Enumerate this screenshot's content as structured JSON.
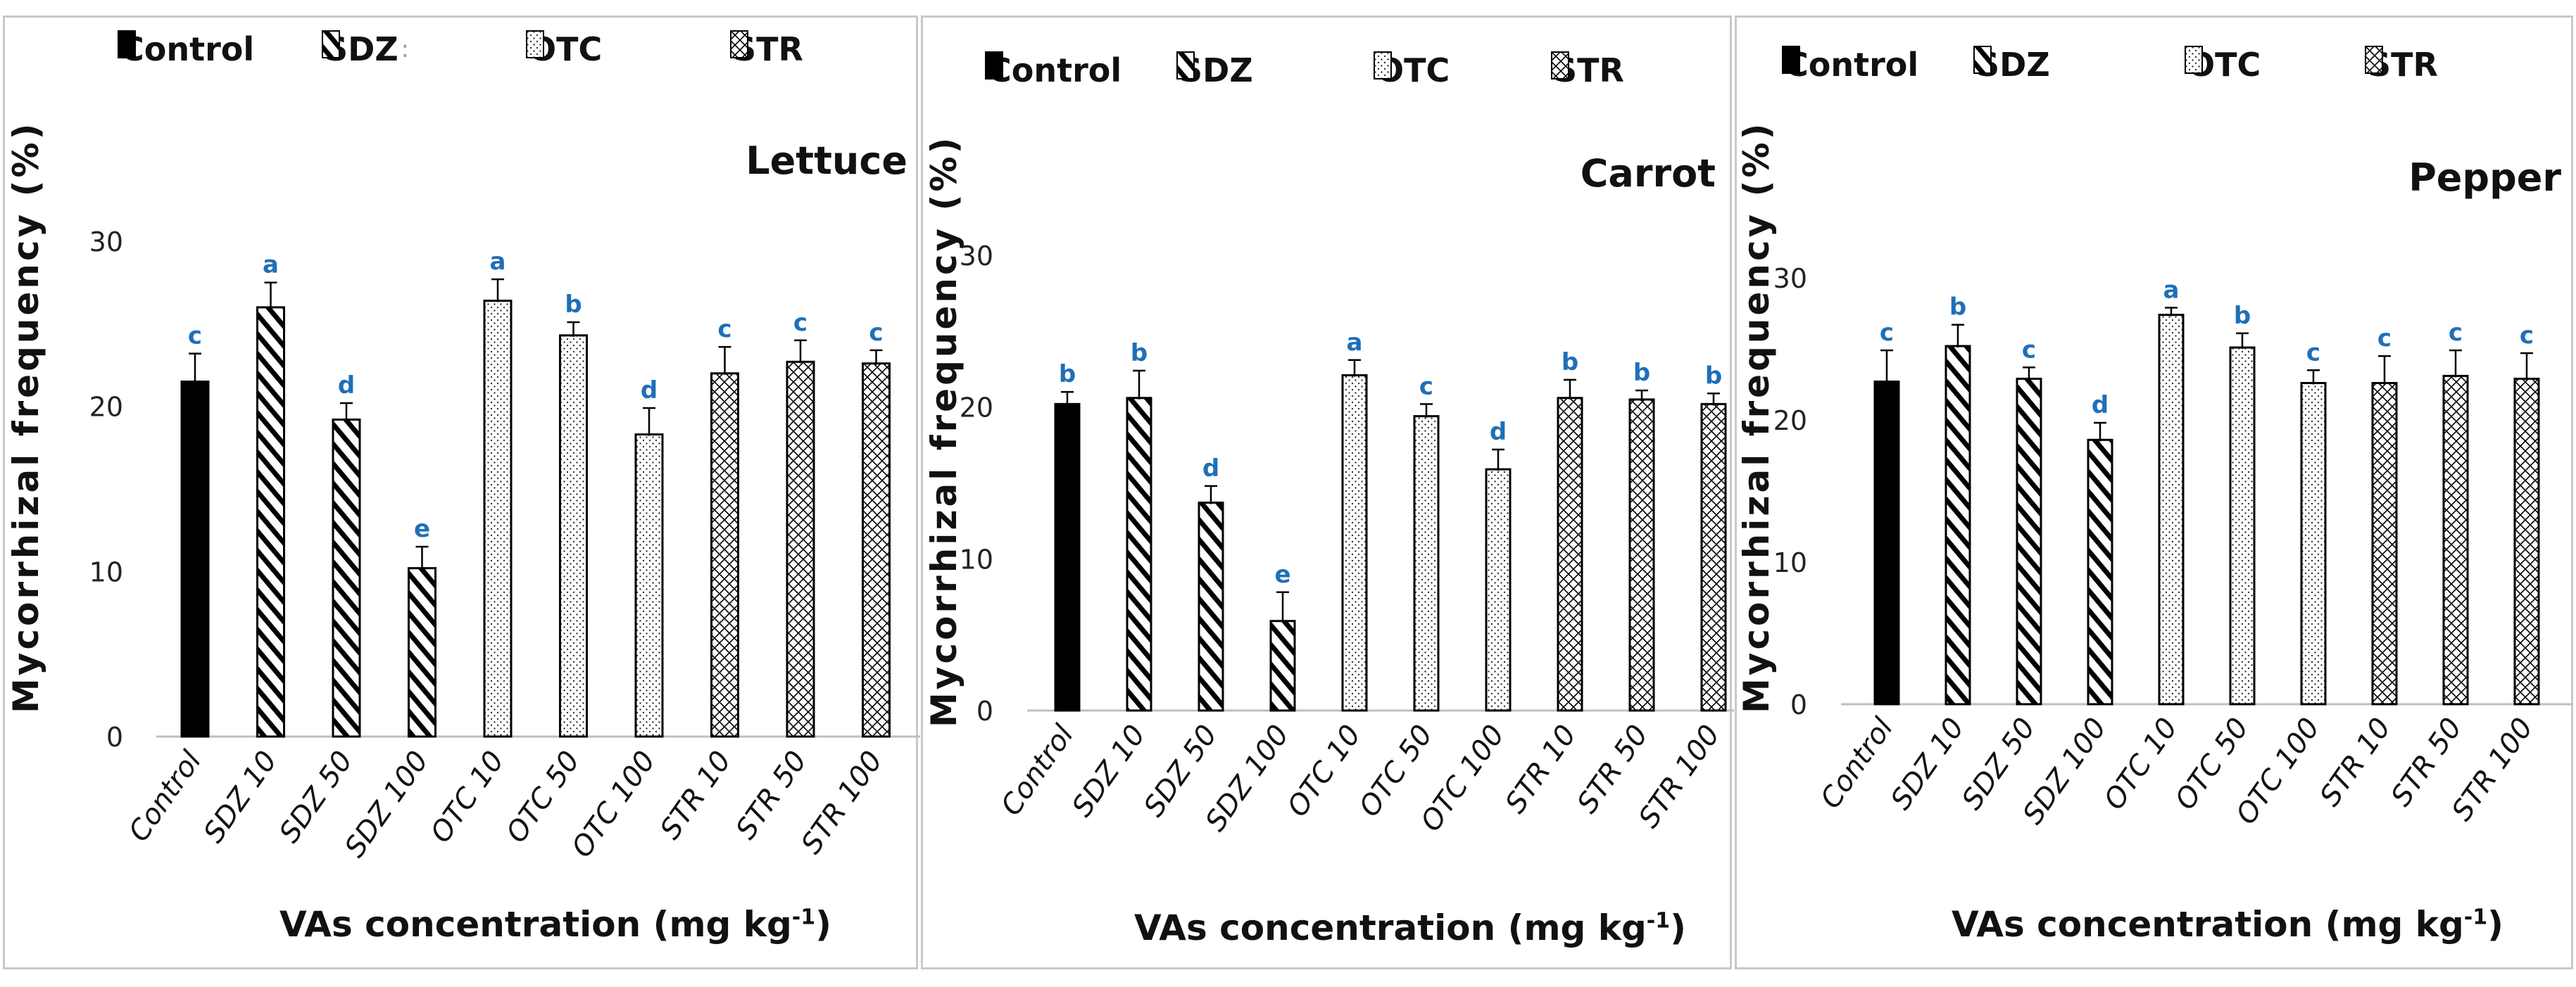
{
  "legend": [
    "Control",
    "SDZ",
    "OTC",
    "STR"
  ],
  "legend_stray": [
    "",
    ":",
    "",
    ""
  ],
  "ylabel": "Mycorrhizal frequency (%)",
  "xlabel": "VAs concentration (mg kg",
  "xlabel_sup": "-1",
  "xlabel_tail": ")",
  "colors": {
    "control": "#000000",
    "sdz": "#000000",
    "otc": "#000000",
    "str": "#000000",
    "letters": "#1f6fb8",
    "axis": "#bfbfbf"
  },
  "chart_data": [
    {
      "type": "bar",
      "title": "Lettuce",
      "categories": [
        "Control",
        "SDZ 10",
        "SDZ 50",
        "SDZ 100",
        "OTC 10",
        "OTC 50",
        "OTC 100",
        "STR 10",
        "STR 50",
        "STR 100"
      ],
      "groups": [
        "Control",
        "SDZ",
        "SDZ",
        "SDZ",
        "OTC",
        "OTC",
        "OTC",
        "STR",
        "STR",
        "STR"
      ],
      "values": [
        21.5,
        26,
        19.2,
        10.2,
        26.4,
        24.3,
        18.3,
        22,
        22.7,
        22.6
      ],
      "errors": [
        1.7,
        1.5,
        1.0,
        1.3,
        1.3,
        0.8,
        1.6,
        1.6,
        1.3,
        0.8
      ],
      "letters": [
        "c",
        "a",
        "d",
        "e",
        "a",
        "b",
        "d",
        "c",
        "c",
        "c"
      ],
      "yticks": [
        0,
        10,
        20,
        30
      ],
      "ylim": [
        0,
        30
      ]
    },
    {
      "type": "bar",
      "title": "Carrot",
      "categories": [
        "Control",
        "SDZ 10",
        "SDZ 50",
        "SDZ 100",
        "OTC 10",
        "OTC 50",
        "OTC 100",
        "STR 10",
        "STR 50",
        "STR 100"
      ],
      "groups": [
        "Control",
        "SDZ",
        "SDZ",
        "SDZ",
        "OTC",
        "OTC",
        "OTC",
        "STR",
        "STR",
        "STR"
      ],
      "values": [
        20.2,
        20.6,
        13.7,
        5.9,
        22.1,
        19.4,
        15.9,
        20.6,
        20.5,
        20.2
      ],
      "errors": [
        0.8,
        1.8,
        1.1,
        1.9,
        1.0,
        0.8,
        1.3,
        1.2,
        0.6,
        0.7
      ],
      "letters": [
        "b",
        "b",
        "d",
        "e",
        "a",
        "c",
        "d",
        "b",
        "b",
        "b"
      ],
      "yticks": [
        0,
        10,
        20,
        30
      ],
      "ylim": [
        0,
        30
      ]
    },
    {
      "type": "bar",
      "title": "Pepper",
      "categories": [
        "Control",
        "SDZ 10",
        "SDZ 50",
        "SDZ 100",
        "OTC 10",
        "OTC 50",
        "OTC 100",
        "STR 10",
        "STR 50",
        "STR 100"
      ],
      "groups": [
        "Control",
        "SDZ",
        "SDZ",
        "SDZ",
        "OTC",
        "OTC",
        "OTC",
        "STR",
        "STR",
        "STR"
      ],
      "values": [
        22.7,
        25.2,
        22.9,
        18.6,
        27.4,
        25.1,
        22.6,
        22.6,
        23.1,
        22.9
      ],
      "errors": [
        2.2,
        1.5,
        0.8,
        1.2,
        0.5,
        1.0,
        0.9,
        1.9,
        1.8,
        1.8
      ],
      "letters": [
        "c",
        "b",
        "c",
        "d",
        "a",
        "b",
        "c",
        "c",
        "c",
        "c"
      ],
      "yticks": [
        0,
        10,
        20,
        30
      ],
      "ylim": [
        0,
        30
      ]
    }
  ]
}
